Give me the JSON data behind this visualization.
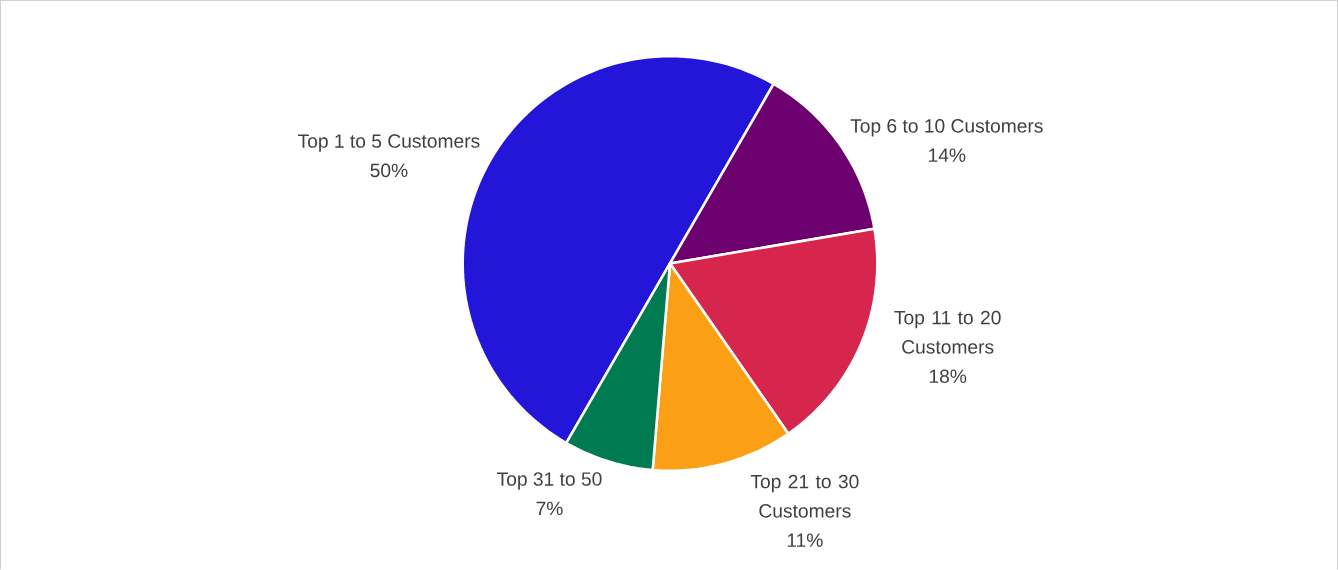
{
  "chart_data": {
    "type": "pie",
    "categories": [
      "Top 1 to 5 Customers",
      "Top 6 to 10 Customers",
      "Top 11 to 20 Customers",
      "Top 21 to 30 Customers",
      "Top 31 to 50"
    ],
    "values": [
      50,
      14,
      18,
      11,
      7
    ],
    "value_labels": [
      "50%",
      "14%",
      "18%",
      "11%",
      "7%"
    ],
    "colors": [
      "#2316d9",
      "#6b006e",
      "#d7264e",
      "#fb9f14",
      "#007a51"
    ]
  }
}
